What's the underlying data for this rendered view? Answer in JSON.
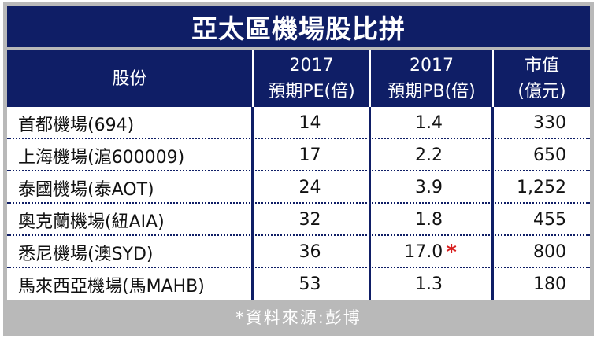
{
  "title": "亞太區機場股比拼",
  "headers": {
    "stock": "股份",
    "pe_line1": "2017",
    "pe_line2": "預期PE(倍)",
    "pb_line1": "2017",
    "pb_line2": "預期PB(倍)",
    "cap_line1": "市值",
    "cap_line2": "(億元)"
  },
  "rows": [
    {
      "name": "首都機場(694)",
      "pe": "14",
      "pb": "1.4",
      "cap": "330",
      "star": ""
    },
    {
      "name": "上海機場(滬600009)",
      "pe": "17",
      "pb": "2.2",
      "cap": "650",
      "star": ""
    },
    {
      "name": "泰國機場(泰AOT)",
      "pe": "24",
      "pb": "3.9",
      "cap": "1,252",
      "star": ""
    },
    {
      "name": "奧克蘭機場(紐AIA)",
      "pe": "32",
      "pb": "1.8",
      "cap": "455",
      "star": ""
    },
    {
      "name": "悉尼機場(澳SYD)",
      "pe": "36",
      "pb": "17.0",
      "cap": "800",
      "star": "*"
    },
    {
      "name": "馬來西亞機場(馬MAHB)",
      "pe": "53",
      "pb": "1.3",
      "cap": "180",
      "star": ""
    }
  ],
  "footnote": "*資料來源:彭博",
  "colors": {
    "header_bg": "#0f1e66",
    "frame_bg": "#b9b9b9",
    "star": "#d81e1e"
  }
}
